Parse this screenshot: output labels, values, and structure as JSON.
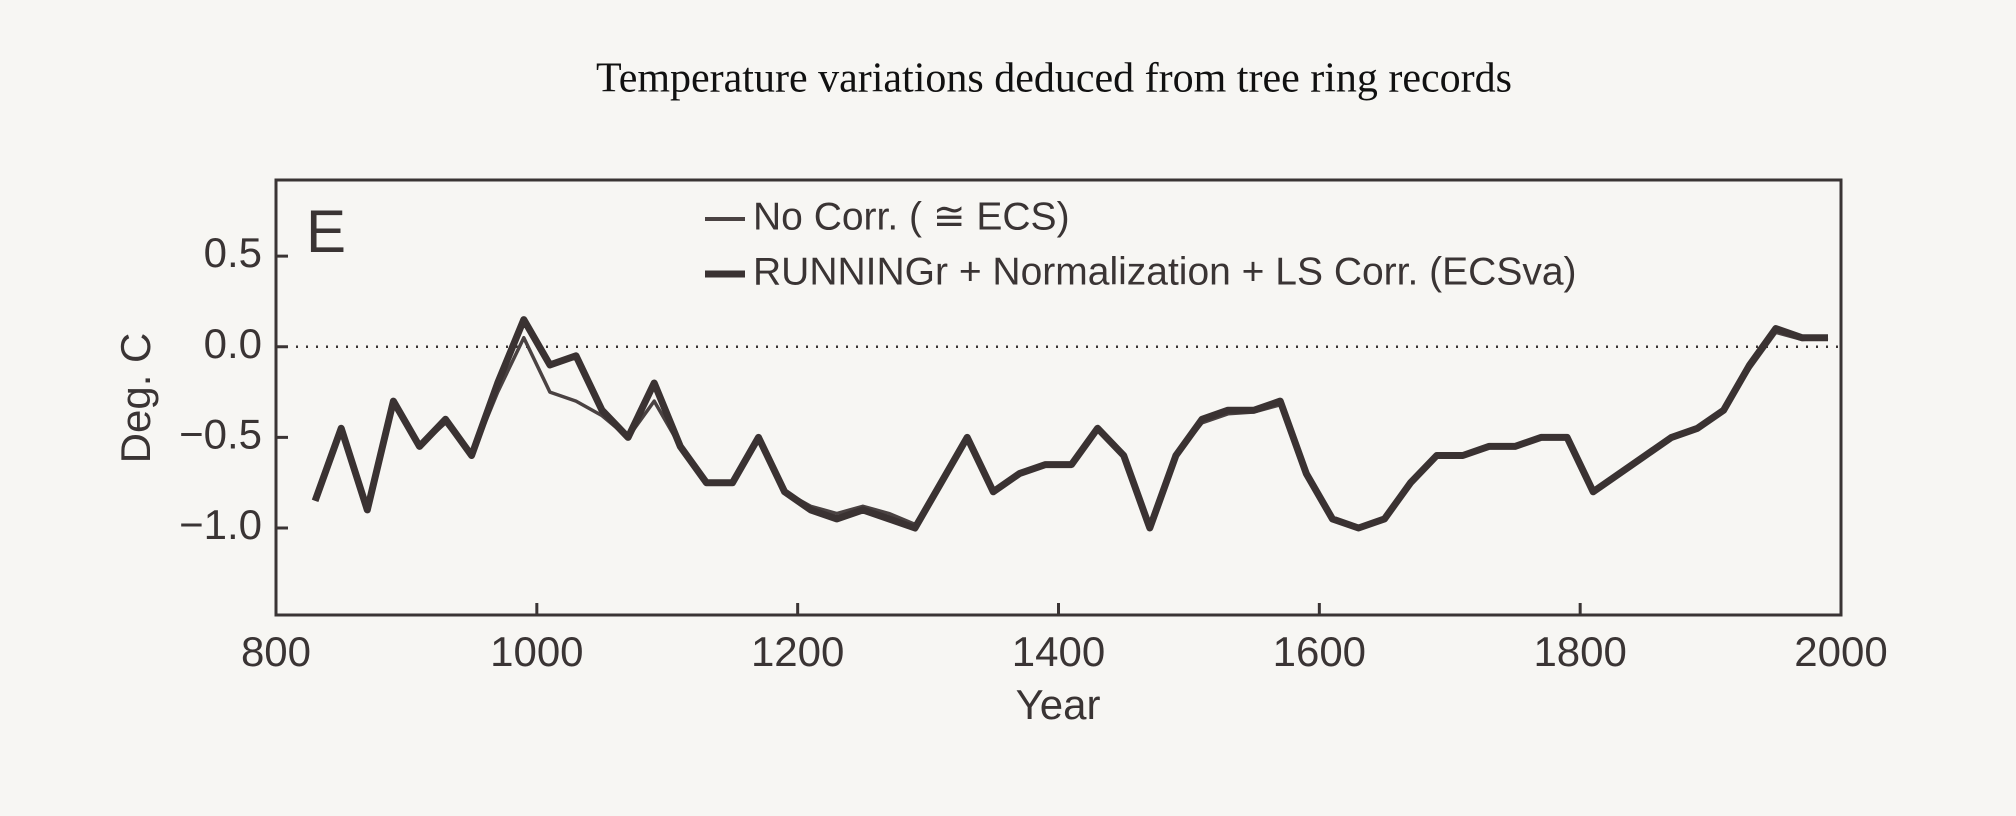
{
  "chart_data": {
    "type": "line",
    "title": "Temperature variations deduced from tree ring records",
    "panel_label": "E",
    "xlabel": "Year",
    "ylabel": "Deg. C",
    "x": [
      830,
      850,
      870,
      890,
      910,
      930,
      950,
      970,
      990,
      1010,
      1030,
      1050,
      1070,
      1090,
      1110,
      1130,
      1150,
      1170,
      1190,
      1210,
      1230,
      1250,
      1270,
      1290,
      1310,
      1330,
      1350,
      1370,
      1390,
      1410,
      1430,
      1450,
      1470,
      1490,
      1510,
      1530,
      1550,
      1570,
      1590,
      1610,
      1630,
      1650,
      1670,
      1690,
      1710,
      1730,
      1750,
      1770,
      1790,
      1810,
      1830,
      1850,
      1870,
      1890,
      1910,
      1930,
      1950,
      1970,
      1990
    ],
    "series": [
      {
        "name": "No Corr. ( ≅ ECS)",
        "color": "#4a4242",
        "values": [
          -0.85,
          -0.45,
          -0.9,
          -0.32,
          -0.55,
          -0.42,
          -0.6,
          -0.25,
          0.05,
          -0.25,
          -0.3,
          -0.38,
          -0.5,
          -0.3,
          -0.55,
          -0.75,
          -0.75,
          -0.52,
          -0.8,
          -0.88,
          -0.92,
          -0.88,
          -0.92,
          -0.98,
          -0.75,
          -0.5,
          -0.8,
          -0.7,
          -0.65,
          -0.65,
          -0.45,
          -0.6,
          -1.0,
          -0.6,
          -0.42,
          -0.37,
          -0.36,
          -0.32,
          -0.7,
          -0.95,
          -1.0,
          -0.95,
          -0.75,
          -0.6,
          -0.6,
          -0.55,
          -0.55,
          -0.5,
          -0.5,
          -0.8,
          -0.7,
          -0.6,
          -0.5,
          -0.45,
          -0.35,
          -0.12,
          0.08,
          0.04,
          0.05
        ]
      },
      {
        "name": "RUNNINGr + Normalization + LS Corr. (ECSva)",
        "color": "#3a3232",
        "values": [
          -0.85,
          -0.45,
          -0.9,
          -0.3,
          -0.55,
          -0.4,
          -0.6,
          -0.2,
          0.15,
          -0.1,
          -0.05,
          -0.35,
          -0.5,
          -0.2,
          -0.55,
          -0.75,
          -0.75,
          -0.5,
          -0.8,
          -0.9,
          -0.95,
          -0.9,
          -0.95,
          -1.0,
          -0.75,
          -0.5,
          -0.8,
          -0.7,
          -0.65,
          -0.65,
          -0.45,
          -0.6,
          -1.0,
          -0.6,
          -0.4,
          -0.35,
          -0.35,
          -0.3,
          -0.7,
          -0.95,
          -1.0,
          -0.95,
          -0.75,
          -0.6,
          -0.6,
          -0.55,
          -0.55,
          -0.5,
          -0.5,
          -0.8,
          -0.7,
          -0.6,
          -0.5,
          -0.45,
          -0.35,
          -0.1,
          0.1,
          0.05,
          0.05
        ]
      }
    ],
    "xlim": [
      800,
      2000
    ],
    "xticks": [
      800,
      1000,
      1200,
      1400,
      1600,
      1800,
      2000
    ],
    "ylim": [
      -1.48,
      0.92
    ],
    "yticks": [
      {
        "value": -1,
        "label": "−1.0"
      },
      {
        "value": -0.5,
        "label": "−0.5"
      },
      {
        "value": 0,
        "label": "0.0"
      },
      0.5
    ],
    "reference_line": 0,
    "legend": "upper center",
    "grid": false
  }
}
